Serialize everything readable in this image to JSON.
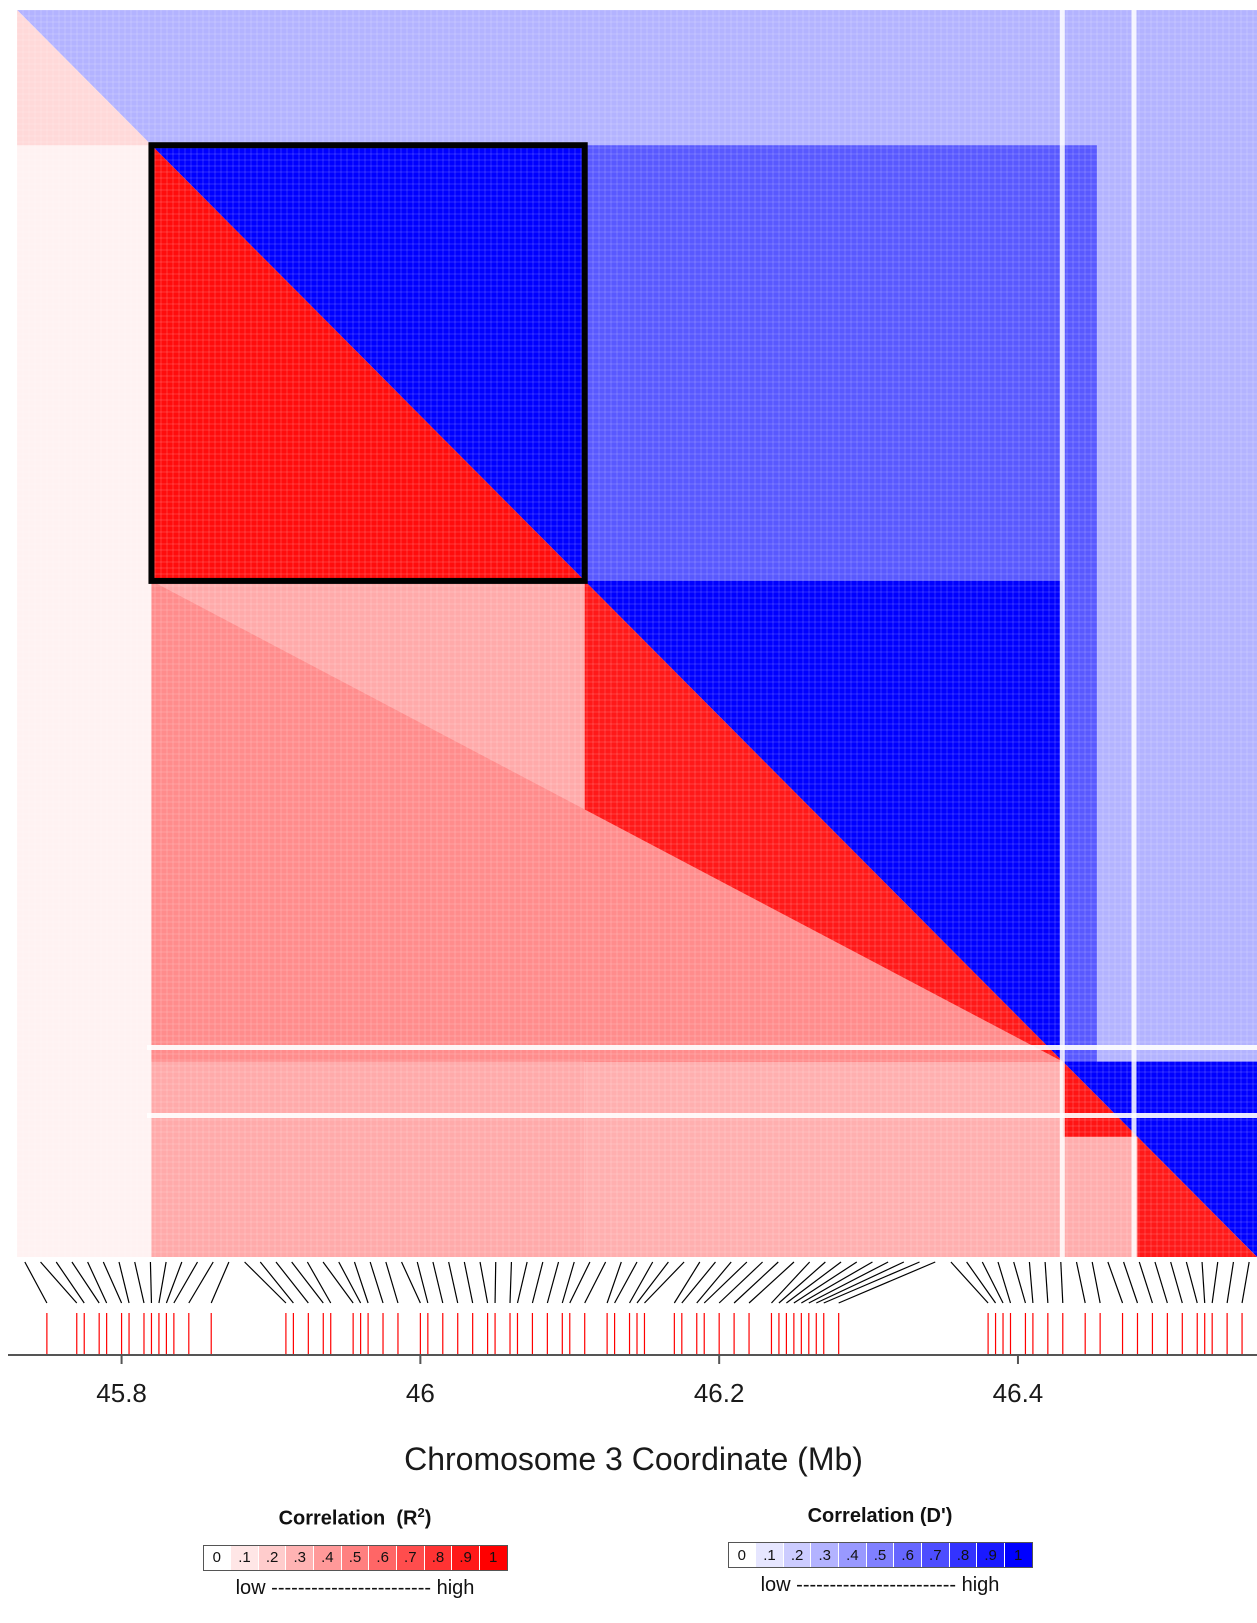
{
  "chart_data": {
    "type": "heatmap",
    "title": "",
    "xlabel": "Chromosome 3 Coordinate (Mb)",
    "ylabel": "",
    "x_ticks": [
      "45.8",
      "46",
      "46.2",
      "46.4"
    ],
    "x_tick_values": [
      45.8,
      46.0,
      46.2,
      46.4
    ],
    "xlim": [
      45.73,
      46.56
    ],
    "lower_triangle": {
      "measure": "R2",
      "color": "#ff0000"
    },
    "upper_triangle": {
      "measure": "D'",
      "color": "#0000ff"
    },
    "highlight_block_mb": [
      45.82,
      46.11
    ],
    "region_r2_levels": [
      {
        "region_mb": [
          45.73,
          45.82
        ],
        "r2": 0.15
      },
      {
        "region_mb": [
          45.82,
          46.11
        ],
        "r2": 0.95
      },
      {
        "region_mb": [
          46.11,
          46.43
        ],
        "r2": 0.9
      },
      {
        "region_mb": [
          46.43,
          46.48
        ],
        "r2": 0.92
      },
      {
        "region_mb": [
          46.48,
          46.56
        ],
        "r2": 0.9
      }
    ],
    "snp_positions_mb": [
      45.75,
      45.77,
      45.775,
      45.785,
      45.79,
      45.8,
      45.805,
      45.815,
      45.82,
      45.825,
      45.83,
      45.835,
      45.845,
      45.86,
      45.91,
      45.915,
      45.925,
      45.935,
      45.94,
      45.955,
      45.96,
      45.965,
      45.975,
      45.985,
      46.0,
      46.005,
      46.015,
      46.025,
      46.035,
      46.045,
      46.05,
      46.06,
      46.065,
      46.075,
      46.085,
      46.095,
      46.1,
      46.11,
      46.125,
      46.13,
      46.14,
      46.145,
      46.15,
      46.17,
      46.175,
      46.185,
      46.19,
      46.2,
      46.21,
      46.22,
      46.235,
      46.24,
      46.245,
      46.25,
      46.255,
      46.26,
      46.265,
      46.27,
      46.28,
      46.38,
      46.385,
      46.39,
      46.395,
      46.405,
      46.41,
      46.42,
      46.43,
      46.445,
      46.455,
      46.47,
      46.48,
      46.49,
      46.5,
      46.51,
      46.52,
      46.525,
      46.53,
      46.54,
      46.55
    ]
  },
  "legend_r2": {
    "title_prefix": "Correlation",
    "title_symbol": "(R",
    "title_sup": "2",
    "title_suffix": ")",
    "labels": [
      "0",
      ".1",
      ".2",
      ".3",
      ".4",
      ".5",
      ".6",
      ".7",
      ".8",
      ".9",
      "1"
    ],
    "low_label": "low",
    "high_label": "high",
    "dashes": "------------------------",
    "color": "#ff0000"
  },
  "legend_d": {
    "title": "Correlation  (D')",
    "labels": [
      "0",
      ".1",
      ".2",
      ".3",
      ".4",
      ".5",
      ".6",
      ".7",
      ".8",
      ".9",
      "1"
    ],
    "low_label": "low",
    "high_label": "high",
    "dashes": "------------------------",
    "color": "#0000ff"
  }
}
